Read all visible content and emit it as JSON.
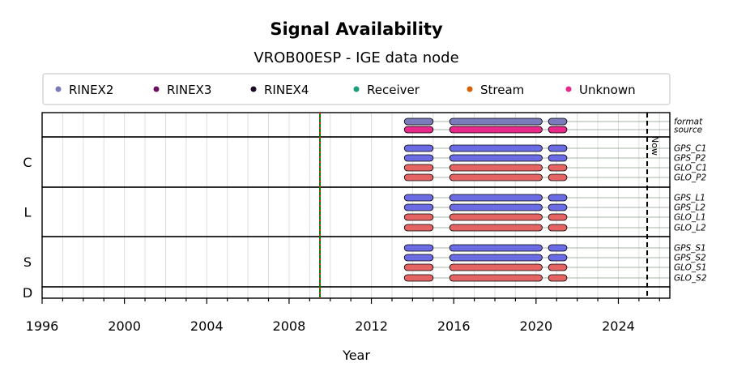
{
  "chart_data": {
    "type": "timeline",
    "title": "Signal Availability",
    "subtitle": "VROB00ESP - IGE data node",
    "xlabel": "Year",
    "xlim": [
      1996,
      2026.5
    ],
    "xticks": [
      1996,
      2000,
      2004,
      2008,
      2012,
      2016,
      2020,
      2024
    ],
    "legend": {
      "placement": "top",
      "entries": [
        {
          "label": "RINEX2",
          "color": "#7b7bbb"
        },
        {
          "label": "RINEX3",
          "color": "#6b0f5e"
        },
        {
          "label": "RINEX4",
          "color": "#1a0a24"
        },
        {
          "label": "Receiver",
          "color": "#1b9e77"
        },
        {
          "label": "Stream",
          "color": "#d95f02"
        },
        {
          "label": "Unknown",
          "color": "#e7298a"
        }
      ]
    },
    "vertical_marker": {
      "x": 2009.5,
      "color": "#008000",
      "accent": "#d62728"
    },
    "now": {
      "label": "Now",
      "x": 2025.4
    },
    "segments": [
      [
        2013.6,
        2015.0
      ],
      [
        2015.8,
        2020.3
      ],
      [
        2020.6,
        2021.5
      ]
    ],
    "colors": {
      "gps": "#6b6be3",
      "glo": "#e46464",
      "format": "#7b7bbb",
      "source": "#e7298a",
      "grid": "#dddddd",
      "trace": "#8a9a8a"
    },
    "groups": [
      {
        "label": "",
        "rows": [
          {
            "label": "format",
            "kind": "format"
          },
          {
            "label": "source",
            "kind": "source"
          }
        ]
      },
      {
        "label": "C",
        "rows": [
          {
            "label": "GPS_C1",
            "kind": "gps"
          },
          {
            "label": "GPS_P2",
            "kind": "gps"
          },
          {
            "label": "GLO_C1",
            "kind": "glo"
          },
          {
            "label": "GLO_P2",
            "kind": "glo"
          }
        ]
      },
      {
        "label": "L",
        "rows": [
          {
            "label": "GPS_L1",
            "kind": "gps"
          },
          {
            "label": "GPS_L2",
            "kind": "gps"
          },
          {
            "label": "GLO_L1",
            "kind": "glo"
          },
          {
            "label": "GLO_L2",
            "kind": "glo"
          }
        ]
      },
      {
        "label": "S",
        "rows": [
          {
            "label": "GPS_S1",
            "kind": "gps"
          },
          {
            "label": "GPS_S2",
            "kind": "gps"
          },
          {
            "label": "GLO_S1",
            "kind": "glo"
          },
          {
            "label": "GLO_S2",
            "kind": "glo"
          }
        ]
      },
      {
        "label": "D",
        "rows": []
      }
    ]
  }
}
